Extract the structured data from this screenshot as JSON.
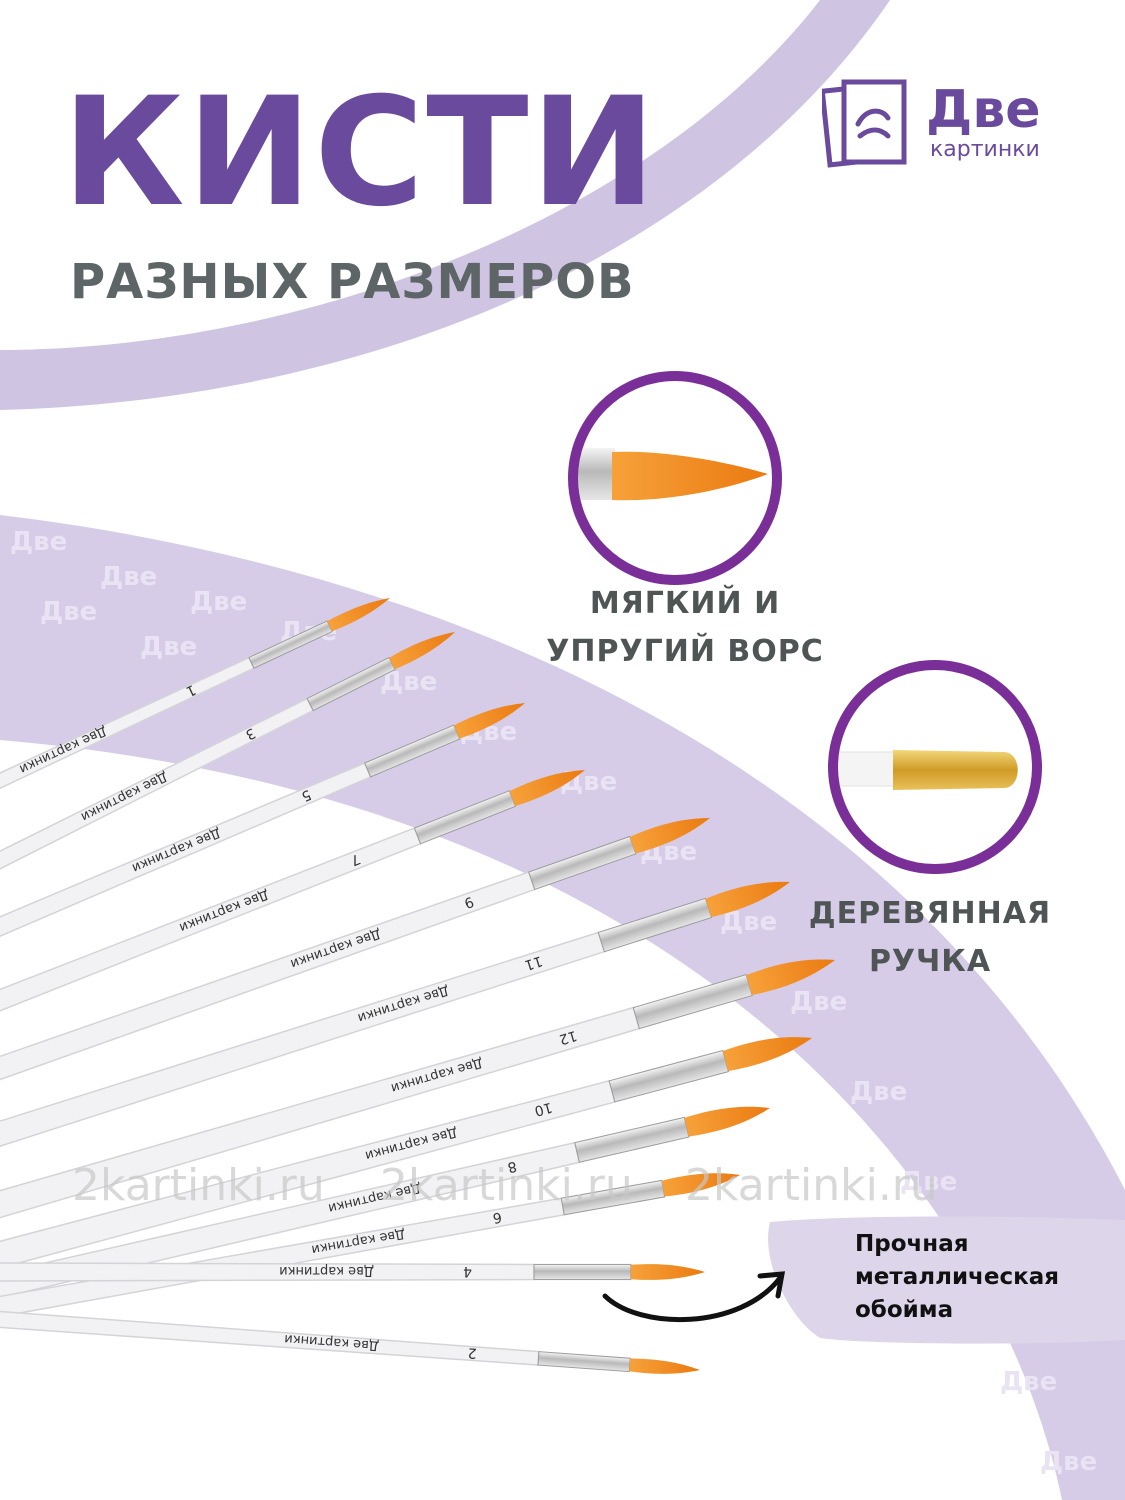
{
  "colors": {
    "purple": "#6a4a9c",
    "gray_text": "#5e6566",
    "lilac": "#cfc5e3",
    "ring": "#7a2e98",
    "bristle": "#f28a1c"
  },
  "header": {
    "title": "КИСТИ",
    "subtitle": "РАЗНЫХ РАЗМЕРОВ"
  },
  "logo": {
    "main": "Две",
    "sub": "картинки"
  },
  "features": {
    "bristle_line1": "МЯГКИЙ И",
    "bristle_line2": "УПРУГИЙ ВОРС",
    "handle_line1": "ДЕРЕВЯННАЯ",
    "handle_line2": "РУЧКА",
    "ferrule_line1": "Прочная",
    "ferrule_line2": "металлическая",
    "ferrule_line3": "обойма"
  },
  "brand_on_handle": "Две картинки",
  "watermark": "2kartinki.ru",
  "brushes": [
    {
      "number": "1"
    },
    {
      "number": "3"
    },
    {
      "number": "5"
    },
    {
      "number": "7"
    },
    {
      "number": "9"
    },
    {
      "number": "11"
    },
    {
      "number": "12"
    },
    {
      "number": "10"
    },
    {
      "number": "8"
    },
    {
      "number": "6"
    },
    {
      "number": "4"
    },
    {
      "number": "2"
    }
  ]
}
